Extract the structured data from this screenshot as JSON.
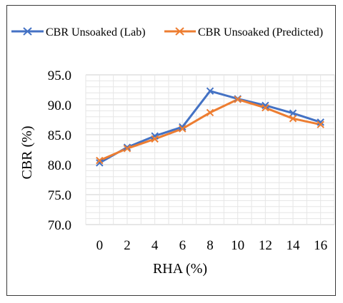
{
  "chart_data": {
    "type": "line",
    "x": [
      0,
      2,
      4,
      6,
      8,
      10,
      12,
      14,
      16
    ],
    "xlabel": "RHA (%)",
    "ylabel": "CBR (%)",
    "ylim": [
      70.0,
      95.0
    ],
    "yticks": [
      "70.0",
      "75.0",
      "80.0",
      "85.0",
      "90.0",
      "95.0"
    ],
    "xticks": [
      "0",
      "2",
      "4",
      "6",
      "8",
      "10",
      "12",
      "14",
      "16"
    ],
    "grid": true,
    "legend_position": "top",
    "marker": "x",
    "series": [
      {
        "name": "CBR Unsoaked (Lab)",
        "color": "#4472C4",
        "values": [
          80.3,
          82.9,
          84.8,
          86.3,
          92.3,
          91.0,
          89.9,
          88.6,
          87.1
        ]
      },
      {
        "name": "CBR Unsoaked (Predicted)",
        "color": "#ED7D31",
        "values": [
          80.7,
          82.7,
          84.3,
          86.0,
          88.7,
          90.9,
          89.5,
          87.7,
          86.7
        ]
      }
    ]
  }
}
